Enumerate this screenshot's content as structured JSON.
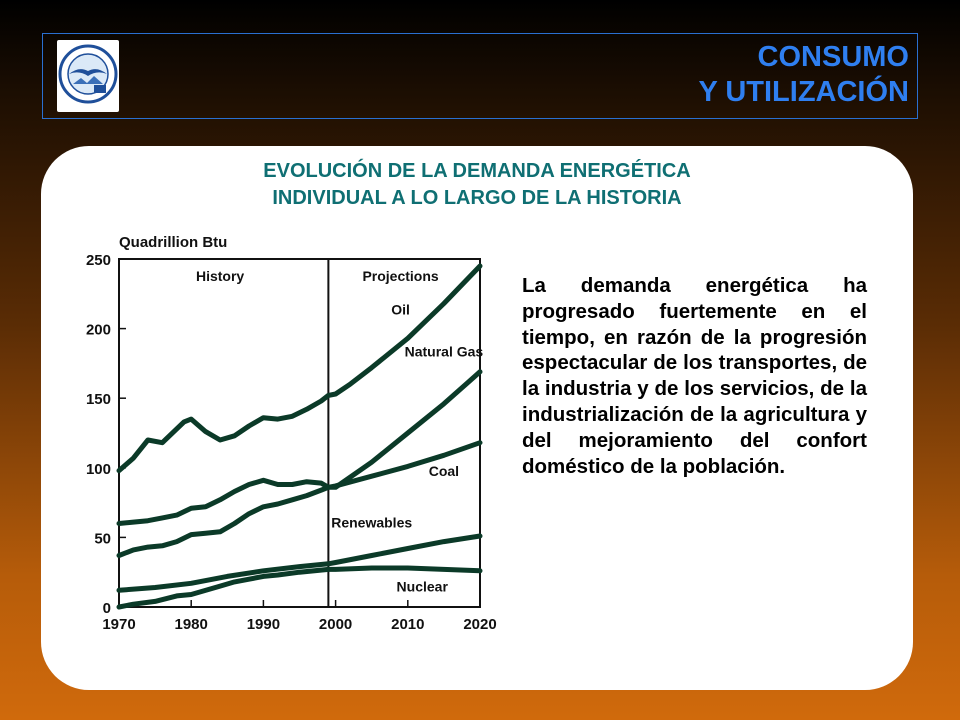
{
  "header": {
    "title_line1": "CONSUMO",
    "title_line2": "Y UTILIZACIÓN",
    "logo_ring_text": "UNIVERSIDAD NACIONAL DE CUYO",
    "logo_bottom_text": "MENDOZA ARGENTINA"
  },
  "slide": {
    "title_line1": "EVOLUCIÓN DE LA DEMANDA ENERGÉTICA",
    "title_line2": "INDIVIDUAL A LO LARGO DE LA HISTORIA",
    "body": "La demanda energética ha progresado fuertemente en el tiempo, en razón de la progresión espectacular de los transportes, de la industria y de los servicios, de la industrialización de la agricultura y del mejoramiento del confort doméstico de la población."
  },
  "colors": {
    "accent_blue": "#2f7ff0",
    "title_teal": "#0f6f73",
    "series_line": "#0b3a28"
  },
  "chart_data": {
    "type": "line",
    "ylabel": "Quadrillion Btu",
    "xlim": [
      1970,
      2020
    ],
    "ylim": [
      0,
      250
    ],
    "x_ticks": [
      1970,
      1980,
      1990,
      2000,
      2010,
      2020
    ],
    "y_ticks": [
      0,
      50,
      100,
      150,
      200,
      250
    ],
    "divider_x": 1999,
    "region_labels": [
      "History",
      "Projections"
    ],
    "series": [
      {
        "name": "Oil",
        "x": [
          1970,
          1972,
          1974,
          1976,
          1978,
          1979,
          1980,
          1982,
          1984,
          1986,
          1988,
          1990,
          1992,
          1994,
          1996,
          1998,
          1999,
          2000,
          2002,
          2005,
          2010,
          2015,
          2020
        ],
        "y": [
          98,
          107,
          120,
          118,
          128,
          133,
          135,
          126,
          120,
          123,
          130,
          136,
          135,
          137,
          142,
          148,
          152,
          153,
          160,
          172,
          193,
          218,
          245
        ]
      },
      {
        "name": "Natural Gas",
        "x": [
          1970,
          1972,
          1974,
          1976,
          1978,
          1980,
          1982,
          1984,
          1986,
          1988,
          1990,
          1992,
          1994,
          1996,
          1998,
          1999,
          2000,
          2005,
          2010,
          2015,
          2020
        ],
        "y": [
          37,
          41,
          43,
          44,
          47,
          52,
          53,
          54,
          60,
          67,
          72,
          74,
          77,
          80,
          84,
          86,
          86,
          104,
          125,
          146,
          169
        ]
      },
      {
        "name": "Coal",
        "x": [
          1970,
          1972,
          1974,
          1976,
          1978,
          1980,
          1982,
          1984,
          1986,
          1988,
          1990,
          1992,
          1994,
          1996,
          1998,
          1999,
          2000,
          2005,
          2010,
          2015,
          2020
        ],
        "y": [
          60,
          61,
          62,
          64,
          66,
          71,
          72,
          77,
          83,
          88,
          91,
          88,
          88,
          90,
          89,
          86,
          87,
          94,
          101,
          109,
          118
        ]
      },
      {
        "name": "Renewables",
        "x": [
          1970,
          1975,
          1980,
          1985,
          1990,
          1995,
          1999,
          2000,
          2005,
          2010,
          2015,
          2020
        ],
        "y": [
          12,
          14,
          17,
          22,
          26,
          29,
          31,
          32,
          37,
          42,
          47,
          51
        ]
      },
      {
        "name": "Nuclear",
        "x": [
          1970,
          1972,
          1975,
          1978,
          1980,
          1984,
          1986,
          1988,
          1990,
          1992,
          1995,
          1999,
          2000,
          2005,
          2010,
          2015,
          2020
        ],
        "y": [
          0,
          2,
          4,
          8,
          9,
          15,
          18,
          20,
          22,
          23,
          25,
          27,
          27,
          28,
          28,
          27,
          26
        ]
      }
    ],
    "series_label_positions": {
      "Oil": [
        2009,
        210
      ],
      "Natural Gas": [
        2015,
        180
      ],
      "Coal": [
        2015,
        94
      ],
      "Renewables": [
        2005,
        57
      ],
      "Nuclear": [
        2012,
        11
      ]
    }
  }
}
